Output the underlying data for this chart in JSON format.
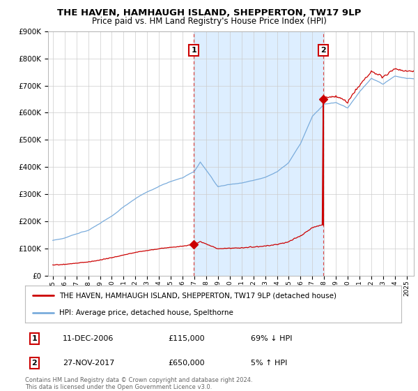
{
  "title": "THE HAVEN, HAMHAUGH ISLAND, SHEPPERTON, TW17 9LP",
  "subtitle": "Price paid vs. HM Land Registry's House Price Index (HPI)",
  "ylim": [
    0,
    900000
  ],
  "yticks": [
    0,
    100000,
    200000,
    300000,
    400000,
    500000,
    600000,
    700000,
    800000,
    900000
  ],
  "ytick_labels": [
    "£0",
    "£100K",
    "£200K",
    "£300K",
    "£400K",
    "£500K",
    "£600K",
    "£700K",
    "£800K",
    "£900K"
  ],
  "hpi_color": "#7aacdc",
  "hpi_fill_color": "#ddeeff",
  "price_color": "#cc0000",
  "vline_color": "#dd4444",
  "sale1_year": 2006.95,
  "sale1_price": 115000,
  "sale2_year": 2017.92,
  "sale2_price": 650000,
  "legend_label_red": "THE HAVEN, HAMHAUGH ISLAND, SHEPPERTON, TW17 9LP (detached house)",
  "legend_label_blue": "HPI: Average price, detached house, Spelthorne",
  "row1_num": "1",
  "row1_date": "11-DEC-2006",
  "row1_price": "£115,000",
  "row1_hpi": "69% ↓ HPI",
  "row2_num": "2",
  "row2_date": "27-NOV-2017",
  "row2_price": "£650,000",
  "row2_hpi": "5% ↑ HPI",
  "footer": "Contains HM Land Registry data © Crown copyright and database right 2024.\nThis data is licensed under the Open Government Licence v3.0.",
  "background_color": "#ffffff",
  "grid_color": "#cccccc",
  "xlim_min": 1994.6,
  "xlim_max": 2025.6,
  "x_start_year": 1995,
  "x_end_year": 2025
}
